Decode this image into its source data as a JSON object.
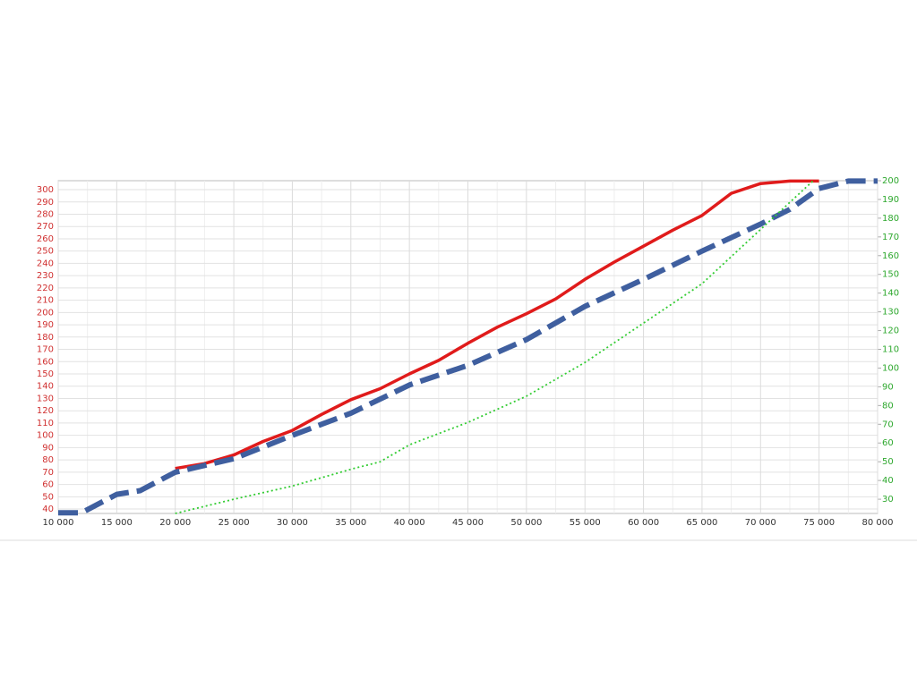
{
  "chart_data": {
    "type": "line",
    "xlim": [
      10000,
      80000
    ],
    "xticks": [
      {
        "value": 10000,
        "label": "10 000"
      },
      {
        "value": 15000,
        "label": "15 000"
      },
      {
        "value": 20000,
        "label": "20 000"
      },
      {
        "value": 25000,
        "label": "25 000"
      },
      {
        "value": 30000,
        "label": "30 000"
      },
      {
        "value": 35000,
        "label": "35 000"
      },
      {
        "value": 40000,
        "label": "40 000"
      },
      {
        "value": 45000,
        "label": "45 000"
      },
      {
        "value": 50000,
        "label": "50 000"
      },
      {
        "value": 55000,
        "label": "55 000"
      },
      {
        "value": 60000,
        "label": "60 000"
      },
      {
        "value": 65000,
        "label": "65 000"
      },
      {
        "value": 70000,
        "label": "70 000"
      },
      {
        "value": 75000,
        "label": "75 000"
      },
      {
        "value": 80000,
        "label": "80 000"
      }
    ],
    "ylim": [
      36.4,
      307.3
    ],
    "yticks": [
      40,
      50,
      60,
      70,
      80,
      90,
      100,
      110,
      120,
      130,
      140,
      150,
      160,
      170,
      180,
      190,
      200,
      210,
      220,
      230,
      240,
      250,
      260,
      270,
      280,
      290,
      300
    ],
    "y2lim": [
      22.4,
      200
    ],
    "y2ticks": [
      30,
      40,
      50,
      60,
      70,
      80,
      90,
      100,
      110,
      120,
      130,
      140,
      150,
      160,
      170,
      180,
      190,
      200
    ],
    "ytick_color": "#d03030",
    "y2tick_color": "#2ea82e",
    "grid": true,
    "series": [
      {
        "color": "#e01b1b",
        "style": "solid",
        "x": [
          20000,
          22500,
          25000,
          27500,
          30000,
          32500,
          35000,
          37500,
          40000,
          42500,
          45000,
          47500,
          50000,
          52500,
          55000,
          57500,
          60000,
          62500,
          65000,
          67500,
          70000,
          72500,
          75000
        ],
        "values": [
          73,
          77,
          84,
          95,
          104,
          117,
          129,
          138,
          150,
          161,
          175,
          188,
          199,
          211,
          227,
          241,
          254,
          267,
          279,
          297,
          305,
          307,
          307
        ]
      },
      {
        "color": "#3f5f9f",
        "style": "dashed",
        "x": [
          10000,
          12000,
          15000,
          17000,
          20000,
          25000,
          30000,
          35000,
          40000,
          45000,
          50000,
          55000,
          60000,
          65000,
          70000,
          72500,
          75000,
          77500,
          80000
        ],
        "values": [
          37,
          37,
          52,
          55,
          70,
          81,
          100,
          118,
          141,
          157,
          178,
          205,
          227,
          250,
          272,
          284,
          301,
          307,
          307
        ]
      },
      {
        "color": "#33cc33",
        "style": "dotted",
        "axis": "y2",
        "x": [
          20000,
          25000,
          30000,
          35000,
          37500,
          40000,
          45000,
          50000,
          55000,
          60000,
          65000,
          70000,
          74500
        ],
        "values": [
          22.4,
          30,
          37,
          46,
          50,
          59,
          71,
          85,
          103,
          124,
          145,
          174,
          200
        ]
      }
    ]
  }
}
